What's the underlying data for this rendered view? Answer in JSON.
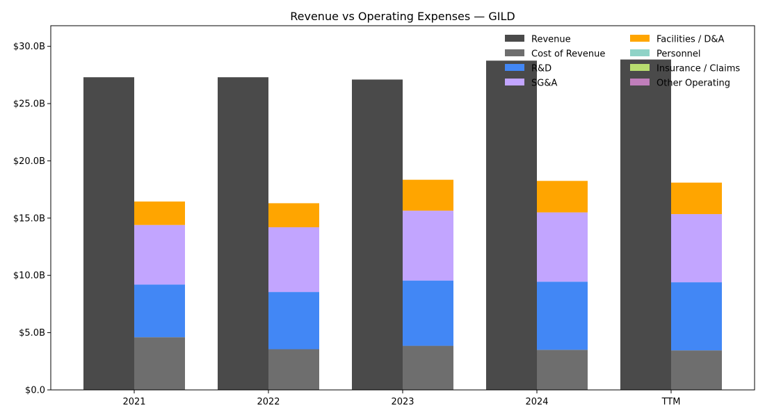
{
  "chart_data": {
    "type": "bar",
    "title": "Revenue vs Operating Expenses — GILD",
    "xlabel": "",
    "ylabel": "",
    "categories": [
      "2021",
      "2022",
      "2023",
      "2024",
      "TTM"
    ],
    "ylim": [
      0,
      31.8
    ],
    "yticks": [
      0,
      5,
      10,
      15,
      20,
      25,
      30
    ],
    "ytick_labels": [
      "$0.0",
      "$5.0B",
      "$10.0B",
      "$15.0B",
      "$20.0B",
      "$25.0B",
      "$30.0B"
    ],
    "units": "billions USD",
    "grid": false,
    "legend_position": "top-right",
    "revenue": {
      "name": "Revenue",
      "color": "#4a4a4a",
      "values": [
        27.3,
        27.3,
        27.1,
        28.75,
        28.85
      ]
    },
    "expense_series": [
      {
        "name": "Cost of Revenue",
        "color": "#6e6e6e",
        "values": [
          4.6,
          3.55,
          3.85,
          3.5,
          3.45
        ]
      },
      {
        "name": "R&D",
        "color": "#4287f5",
        "values": [
          4.6,
          5.0,
          5.7,
          5.95,
          5.95
        ]
      },
      {
        "name": "SG&A",
        "color": "#c2a5ff",
        "values": [
          5.2,
          5.65,
          6.1,
          6.05,
          5.95
        ]
      },
      {
        "name": "Facilities / D&A",
        "color": "#ffa500",
        "values": [
          2.05,
          2.1,
          2.7,
          2.75,
          2.75
        ]
      },
      {
        "name": "Personnel",
        "color": "#8fd3c7",
        "values": [
          0,
          0,
          0,
          0,
          0
        ]
      },
      {
        "name": "Insurance / Claims",
        "color": "#b8de6f",
        "values": [
          0,
          0,
          0,
          0,
          0
        ]
      },
      {
        "name": "Other Operating",
        "color": "#c07ebb",
        "values": [
          0,
          0,
          0,
          0,
          0
        ]
      }
    ]
  }
}
